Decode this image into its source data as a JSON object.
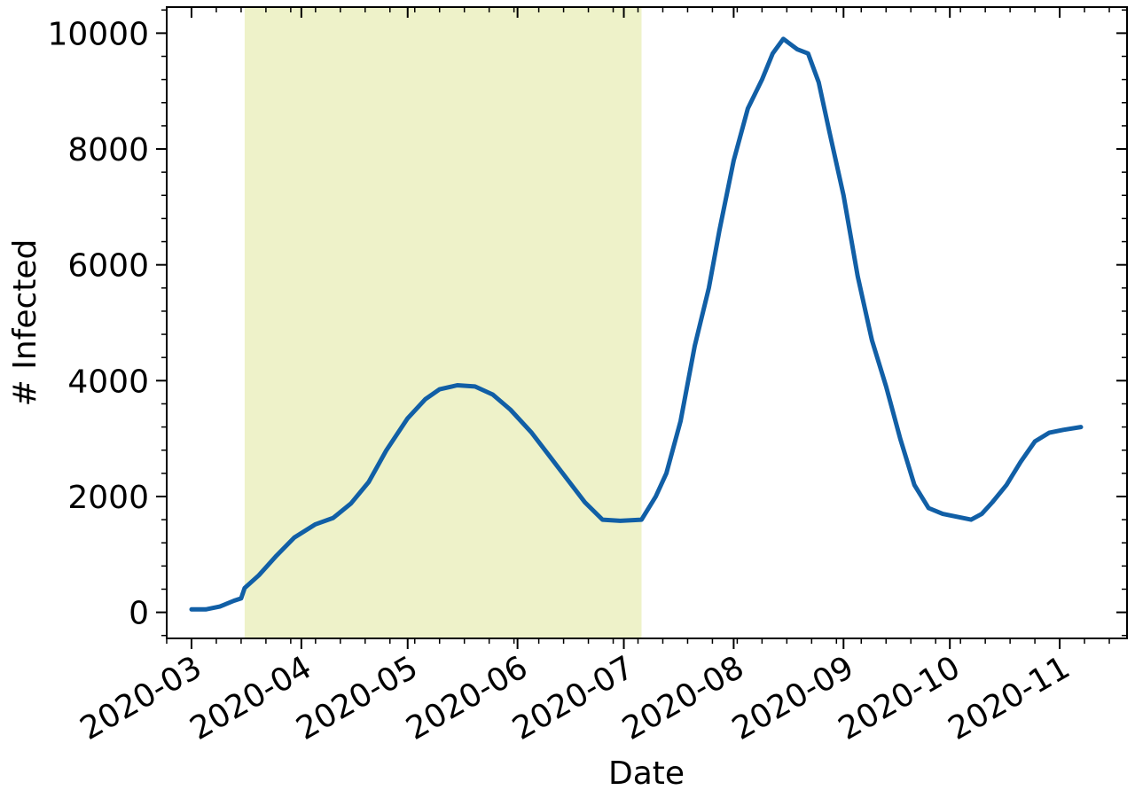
{
  "chart_data": {
    "type": "line",
    "xlabel": "Date",
    "ylabel": "# Infected",
    "x_ticks": [
      "2020-03",
      "2020-04",
      "2020-05",
      "2020-06",
      "2020-07",
      "2020-08",
      "2020-09",
      "2020-10",
      "2020-11"
    ],
    "y_ticks": [
      "0",
      "2000",
      "4000",
      "6000",
      "8000",
      "10000"
    ],
    "xlim": [
      "2020-02-23",
      "2020-11-20"
    ],
    "ylim": [
      -450,
      10450
    ],
    "grid": false,
    "legend": "none",
    "highlight_span": {
      "start": "2020-03-16",
      "end": "2020-07-06",
      "color": "#eef2c9"
    },
    "line_color": "#115fa6",
    "series": [
      {
        "x": [
          "2020-03-01",
          "2020-03-05",
          "2020-03-09",
          "2020-03-13",
          "2020-03-15",
          "2020-03-16",
          "2020-03-20",
          "2020-03-25",
          "2020-03-30",
          "2020-04-05",
          "2020-04-10",
          "2020-04-15",
          "2020-04-20",
          "2020-04-25",
          "2020-05-01",
          "2020-05-06",
          "2020-05-10",
          "2020-05-15",
          "2020-05-20",
          "2020-05-25",
          "2020-05-30",
          "2020-06-05",
          "2020-06-10",
          "2020-06-15",
          "2020-06-20",
          "2020-06-25",
          "2020-06-30",
          "2020-07-06",
          "2020-07-10",
          "2020-07-13",
          "2020-07-17",
          "2020-07-21",
          "2020-07-25",
          "2020-07-28",
          "2020-08-01",
          "2020-08-05",
          "2020-08-09",
          "2020-08-12",
          "2020-08-15",
          "2020-08-19",
          "2020-08-22",
          "2020-08-25",
          "2020-08-28",
          "2020-09-01",
          "2020-09-05",
          "2020-09-09",
          "2020-09-13",
          "2020-09-17",
          "2020-09-21",
          "2020-09-25",
          "2020-09-29",
          "2020-10-03",
          "2020-10-07",
          "2020-10-10",
          "2020-10-13",
          "2020-10-17",
          "2020-10-21",
          "2020-10-25",
          "2020-10-29",
          "2020-11-02",
          "2020-11-07"
        ],
        "y": [
          50,
          50,
          100,
          200,
          240,
          420,
          640,
          980,
          1290,
          1520,
          1630,
          1880,
          2250,
          2800,
          3350,
          3680,
          3850,
          3920,
          3900,
          3760,
          3500,
          3100,
          2700,
          2300,
          1900,
          1600,
          1580,
          1600,
          2000,
          2400,
          3300,
          4600,
          5600,
          6600,
          7800,
          8700,
          9200,
          9650,
          9900,
          9720,
          9650,
          9150,
          8300,
          7200,
          5800,
          4700,
          3900,
          3000,
          2200,
          1800,
          1700,
          1650,
          1600,
          1700,
          1900,
          2200,
          2600,
          2950,
          3100,
          3150,
          3200
        ]
      }
    ]
  }
}
